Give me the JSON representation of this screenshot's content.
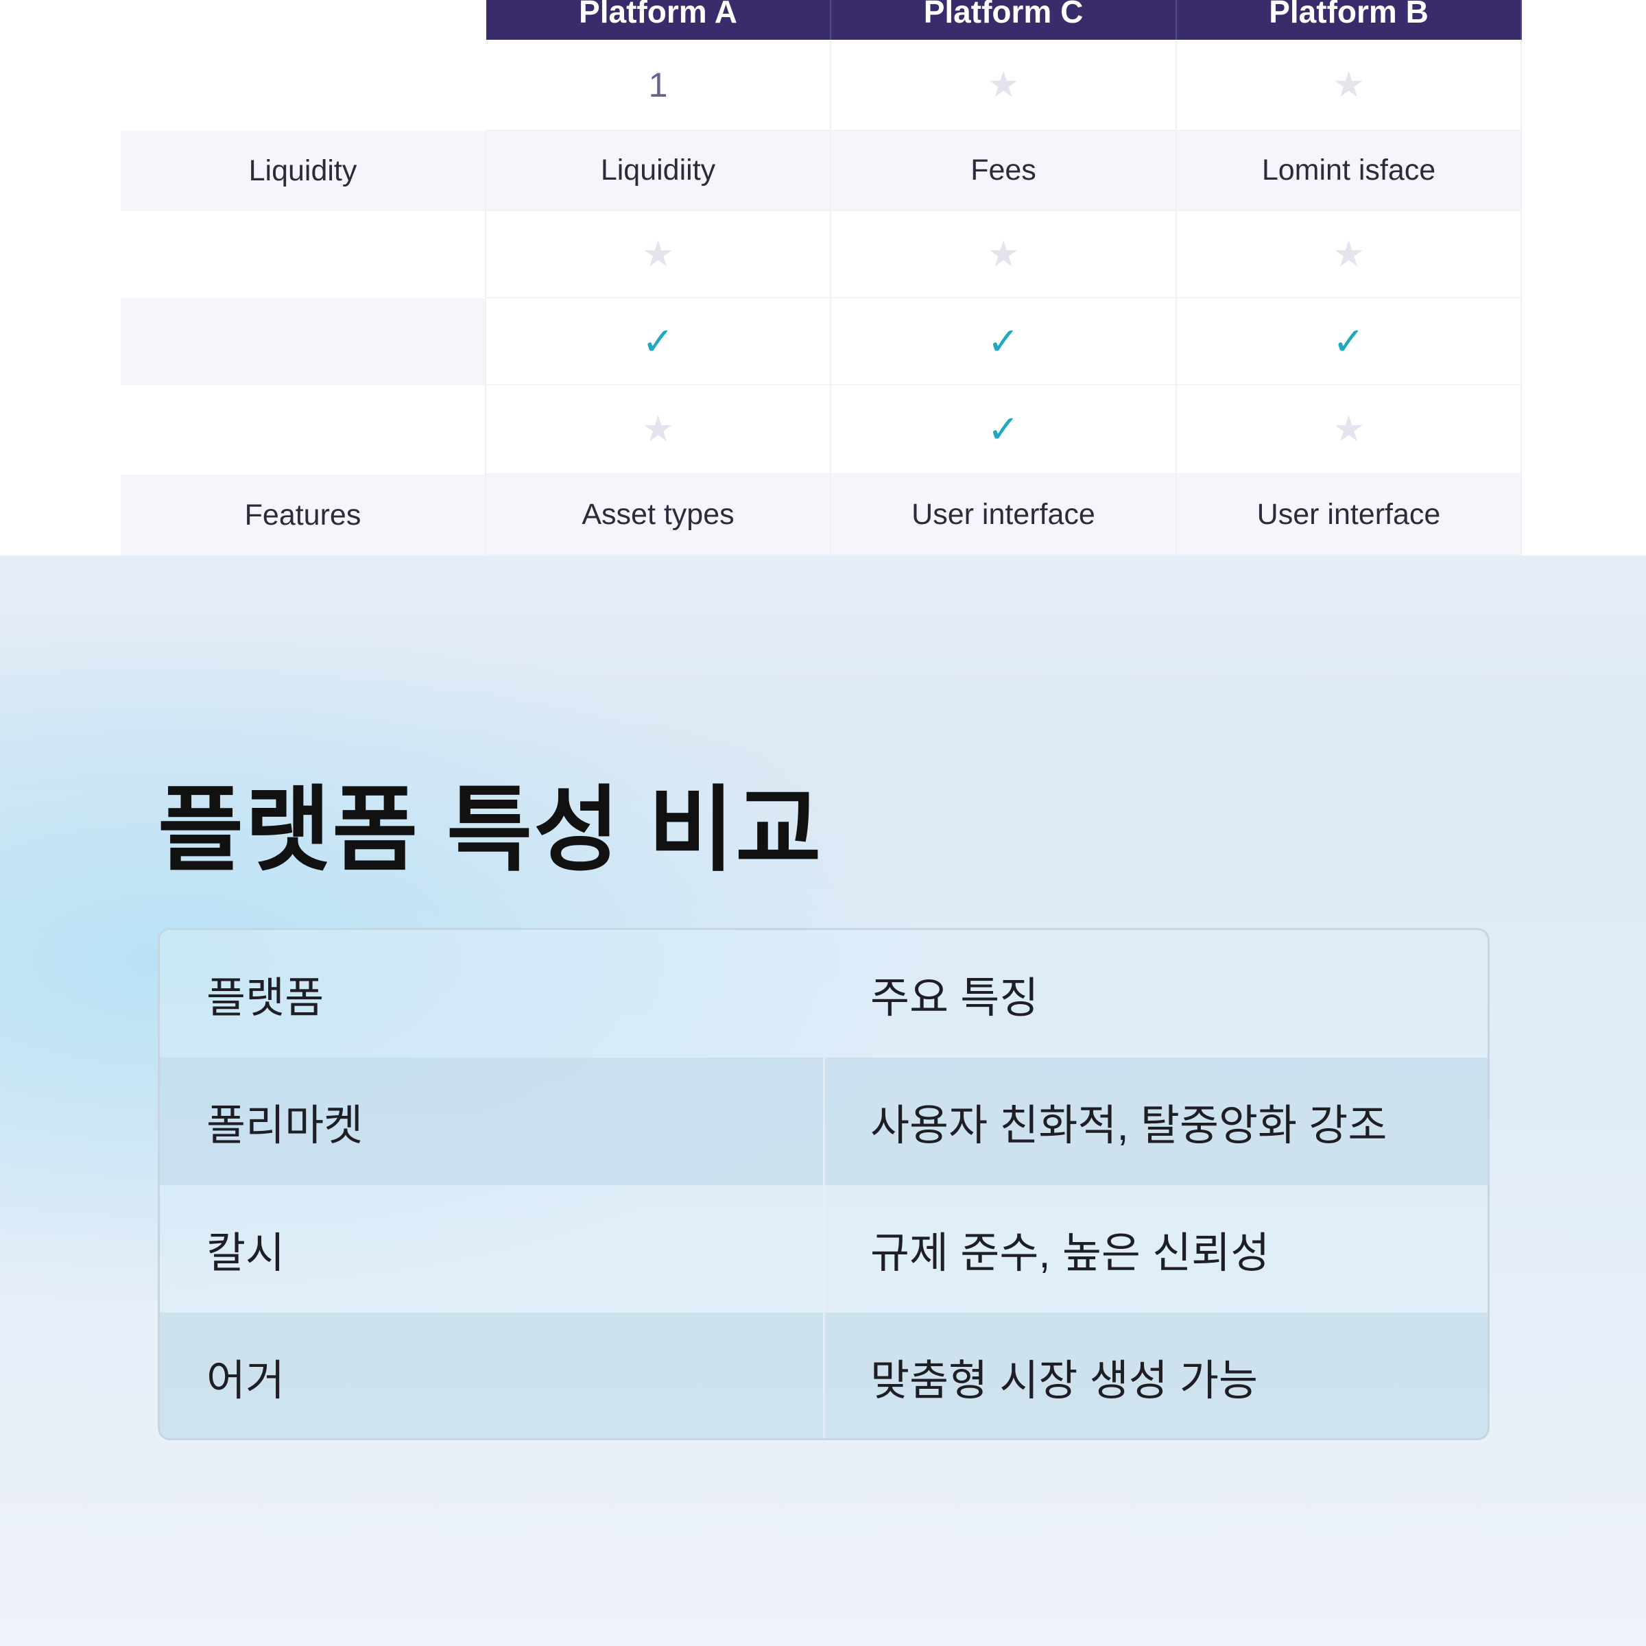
{
  "top_table": {
    "headers": [
      "Platform A",
      "Platform C",
      "Platform B"
    ],
    "rows": [
      {
        "label": "",
        "cells": [
          {
            "text": "1"
          },
          {
            "icon": "star-icon"
          },
          {
            "icon": "star-icon"
          }
        ],
        "shaded": false
      },
      {
        "label": "Liquidity",
        "cells": [
          {
            "text": "Liquidiity"
          },
          {
            "text": "Fees"
          },
          {
            "text": "Lomint isface"
          }
        ],
        "shaded": true
      },
      {
        "label": "",
        "cells": [
          {
            "icon": "star-icon"
          },
          {
            "icon": "star-icon"
          },
          {
            "icon": "star-icon"
          }
        ],
        "shaded": false
      },
      {
        "label": "",
        "cells": [
          {
            "icon": "check-icon"
          },
          {
            "icon": "check-icon"
          },
          {
            "icon": "check-icon"
          }
        ],
        "shaded": false
      },
      {
        "label": "",
        "cells": [
          {
            "icon": "star-icon"
          },
          {
            "icon": "check-icon"
          },
          {
            "icon": "star-icon"
          }
        ],
        "shaded": false
      },
      {
        "label": "Features",
        "cells": [
          {
            "text": "Asset types"
          },
          {
            "text": "User interface"
          },
          {
            "text": "User interface"
          }
        ],
        "shaded": true
      }
    ],
    "colors": {
      "header_bg": "#3a2b6a",
      "check": "#20a8c0",
      "star": "#e4e4ee"
    }
  },
  "title": "플랫폼 특성 비교",
  "comparison": {
    "headers": [
      "플랫폼",
      "주요 특징"
    ],
    "rows": [
      [
        "폴리마켓",
        "사용자 친화적, 탈중앙화 강조"
      ],
      [
        "칼시",
        "규제 준수, 높은 신뢰성"
      ],
      [
        "어거",
        "맞춤형 시장 생성 가능"
      ]
    ]
  }
}
